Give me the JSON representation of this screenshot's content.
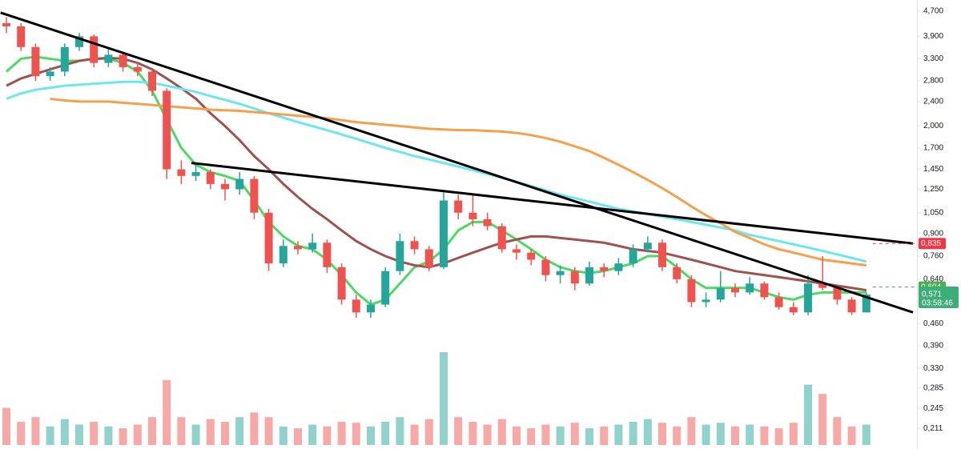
{
  "chart_data": {
    "type": "candlestick",
    "log_scale": true,
    "ylim": [
      0.181,
      5.11
    ],
    "yticks": [
      {
        "value": 4.7,
        "label": "4,700"
      },
      {
        "value": 3.9,
        "label": "3,900"
      },
      {
        "value": 3.3,
        "label": "3,300"
      },
      {
        "value": 2.8,
        "label": "2,800"
      },
      {
        "value": 2.4,
        "label": "2,400"
      },
      {
        "value": 2,
        "label": "2,000"
      },
      {
        "value": 1.7,
        "label": "1,700"
      },
      {
        "value": 1.45,
        "label": "1,450"
      },
      {
        "value": 1.25,
        "label": "1,250"
      },
      {
        "value": 1.05,
        "label": "1,050"
      },
      {
        "value": 0.9,
        "label": "0,900"
      },
      {
        "value": 0.76,
        "label": "0,760"
      },
      {
        "value": 0.64,
        "label": "0,640"
      },
      {
        "value": 0.46,
        "label": "0,460"
      },
      {
        "value": 0.39,
        "label": "0,390"
      },
      {
        "value": 0.33,
        "label": "0,330"
      },
      {
        "value": 0.285,
        "label": "0,285"
      },
      {
        "value": 0.245,
        "label": "0,245"
      },
      {
        "value": 0.211,
        "label": "0,211"
      }
    ],
    "up_color": "#26a69a",
    "down_color": "#ef5350",
    "candles": [
      [
        4.3,
        4.5,
        4.0,
        4.2
      ],
      [
        4.2,
        4.3,
        3.5,
        3.6
      ],
      [
        3.6,
        3.7,
        2.8,
        2.9
      ],
      [
        2.9,
        3.1,
        2.8,
        3.0
      ],
      [
        3.0,
        3.7,
        2.9,
        3.6
      ],
      [
        3.6,
        4.0,
        3.5,
        3.9
      ],
      [
        3.9,
        3.95,
        3.1,
        3.2
      ],
      [
        3.2,
        3.55,
        3.1,
        3.4
      ],
      [
        3.4,
        3.45,
        3.0,
        3.1
      ],
      [
        3.1,
        3.2,
        2.9,
        3.0
      ],
      [
        3.0,
        3.05,
        2.5,
        2.6
      ],
      [
        2.6,
        2.65,
        1.35,
        1.45
      ],
      [
        1.45,
        1.55,
        1.3,
        1.38
      ],
      [
        1.38,
        1.5,
        1.33,
        1.42
      ],
      [
        1.42,
        1.45,
        1.25,
        1.3
      ],
      [
        1.3,
        1.35,
        1.15,
        1.25
      ],
      [
        1.25,
        1.42,
        1.2,
        1.35
      ],
      [
        1.35,
        1.38,
        1.0,
        1.05
      ],
      [
        1.05,
        1.08,
        0.68,
        0.72
      ],
      [
        0.72,
        0.86,
        0.7,
        0.82
      ],
      [
        0.82,
        0.85,
        0.77,
        0.8
      ],
      [
        0.8,
        0.9,
        0.78,
        0.84
      ],
      [
        0.84,
        0.86,
        0.67,
        0.7
      ],
      [
        0.7,
        0.72,
        0.53,
        0.55
      ],
      [
        0.55,
        0.57,
        0.48,
        0.5
      ],
      [
        0.5,
        0.55,
        0.48,
        0.53
      ],
      [
        0.53,
        0.7,
        0.52,
        0.68
      ],
      [
        0.68,
        0.9,
        0.66,
        0.85
      ],
      [
        0.85,
        0.88,
        0.77,
        0.8
      ],
      [
        0.8,
        0.82,
        0.68,
        0.7
      ],
      [
        0.7,
        1.22,
        0.69,
        1.15
      ],
      [
        1.15,
        1.2,
        1.0,
        1.05
      ],
      [
        1.05,
        1.2,
        0.95,
        1.0
      ],
      [
        1.0,
        1.05,
        0.92,
        0.95
      ],
      [
        0.95,
        0.97,
        0.78,
        0.8
      ],
      [
        0.8,
        0.83,
        0.74,
        0.78
      ],
      [
        0.78,
        0.8,
        0.71,
        0.74
      ],
      [
        0.74,
        0.76,
        0.63,
        0.66
      ],
      [
        0.66,
        0.71,
        0.62,
        0.68
      ],
      [
        0.68,
        0.7,
        0.59,
        0.62
      ],
      [
        0.62,
        0.73,
        0.61,
        0.7
      ],
      [
        0.7,
        0.72,
        0.65,
        0.68
      ],
      [
        0.68,
        0.75,
        0.66,
        0.72
      ],
      [
        0.72,
        0.83,
        0.7,
        0.8
      ],
      [
        0.8,
        0.88,
        0.78,
        0.84
      ],
      [
        0.84,
        0.86,
        0.68,
        0.7
      ],
      [
        0.7,
        0.72,
        0.62,
        0.64
      ],
      [
        0.64,
        0.66,
        0.52,
        0.54
      ],
      [
        0.54,
        0.58,
        0.52,
        0.55
      ],
      [
        0.55,
        0.68,
        0.54,
        0.6
      ],
      [
        0.6,
        0.62,
        0.56,
        0.58
      ],
      [
        0.58,
        0.65,
        0.57,
        0.62
      ],
      [
        0.62,
        0.63,
        0.55,
        0.56
      ],
      [
        0.56,
        0.58,
        0.51,
        0.52
      ],
      [
        0.52,
        0.54,
        0.49,
        0.5
      ],
      [
        0.5,
        0.66,
        0.49,
        0.62
      ],
      [
        0.62,
        0.76,
        0.59,
        0.6
      ],
      [
        0.6,
        0.61,
        0.53,
        0.55
      ],
      [
        0.55,
        0.56,
        0.49,
        0.5
      ],
      [
        0.5,
        0.58,
        0.5,
        0.571
      ]
    ],
    "volume": {
      "vlim": [
        0,
        100
      ],
      "values": [
        40,
        25,
        30,
        20,
        28,
        22,
        25,
        20,
        18,
        22,
        30,
        70,
        30,
        22,
        28,
        25,
        30,
        35,
        30,
        20,
        18,
        22,
        20,
        25,
        24,
        20,
        25,
        30,
        22,
        28,
        100,
        30,
        25,
        22,
        28,
        20,
        18,
        22,
        20,
        24,
        18,
        20,
        22,
        25,
        28,
        24,
        20,
        30,
        22,
        24,
        20,
        22,
        20,
        18,
        24,
        65,
        55,
        30,
        20,
        22
      ]
    },
    "series": [
      {
        "color": "#4cd964",
        "values": [
          3.0,
          3.3,
          3.35,
          3.3,
          3.25,
          3.25,
          3.3,
          3.3,
          3.2,
          3.0,
          2.6,
          2.1,
          1.7,
          1.5,
          1.42,
          1.38,
          1.33,
          1.15,
          0.98,
          0.88,
          0.82,
          0.8,
          0.74,
          0.66,
          0.58,
          0.53,
          0.55,
          0.62,
          0.7,
          0.73,
          0.8,
          0.92,
          0.98,
          0.98,
          0.92,
          0.86,
          0.8,
          0.74,
          0.7,
          0.68,
          0.67,
          0.68,
          0.7,
          0.72,
          0.76,
          0.76,
          0.7,
          0.64,
          0.6,
          0.6,
          0.6,
          0.6,
          0.58,
          0.56,
          0.55,
          0.57,
          0.58,
          0.58,
          0.58,
          0.58
        ]
      },
      {
        "color": "#a0524f",
        "values": [
          2.7,
          2.85,
          2.95,
          3.05,
          3.15,
          3.25,
          3.3,
          3.32,
          3.3,
          3.2,
          3.05,
          2.85,
          2.65,
          2.45,
          2.2,
          2.0,
          1.8,
          1.6,
          1.45,
          1.3,
          1.18,
          1.08,
          1.0,
          0.92,
          0.85,
          0.8,
          0.76,
          0.73,
          0.71,
          0.7,
          0.72,
          0.75,
          0.78,
          0.81,
          0.84,
          0.86,
          0.88,
          0.88,
          0.87,
          0.86,
          0.85,
          0.84,
          0.82,
          0.8,
          0.79,
          0.78,
          0.76,
          0.74,
          0.72,
          0.7,
          0.68,
          0.67,
          0.66,
          0.65,
          0.64,
          0.63,
          0.62,
          0.61,
          0.6,
          0.59
        ]
      },
      {
        "color": "#6ee6f0",
        "values": [
          2.45,
          2.55,
          2.62,
          2.66,
          2.7,
          2.72,
          2.74,
          2.76,
          2.78,
          2.78,
          2.76,
          2.7,
          2.64,
          2.58,
          2.5,
          2.43,
          2.36,
          2.28,
          2.2,
          2.13,
          2.06,
          2.0,
          1.94,
          1.88,
          1.82,
          1.76,
          1.7,
          1.65,
          1.6,
          1.56,
          1.52,
          1.48,
          1.44,
          1.4,
          1.36,
          1.32,
          1.28,
          1.24,
          1.2,
          1.17,
          1.14,
          1.11,
          1.08,
          1.06,
          1.04,
          1.02,
          1.0,
          0.98,
          0.96,
          0.94,
          0.92,
          0.89,
          0.87,
          0.85,
          0.83,
          0.81,
          0.79,
          0.77,
          0.75,
          0.73
        ]
      },
      {
        "color": "#f5a04c",
        "values": [
          null,
          null,
          null,
          2.45,
          2.42,
          2.4,
          2.4,
          2.4,
          2.38,
          2.36,
          2.34,
          2.32,
          2.3,
          2.28,
          2.26,
          2.25,
          2.24,
          2.22,
          2.2,
          2.18,
          2.16,
          2.14,
          2.12,
          2.09,
          2.06,
          2.04,
          2.02,
          2.0,
          1.98,
          1.96,
          1.95,
          1.94,
          1.94,
          1.93,
          1.92,
          1.9,
          1.87,
          1.83,
          1.78,
          1.72,
          1.66,
          1.58,
          1.5,
          1.42,
          1.34,
          1.26,
          1.18,
          1.1,
          1.03,
          0.97,
          0.91,
          0.87,
          0.83,
          0.8,
          0.78,
          0.76,
          0.74,
          0.73,
          0.72,
          0.71
        ]
      }
    ],
    "trendlines": [
      {
        "x": [
          -0.4,
          62.2
        ],
        "values": [
          4.65,
          0.5
        ]
      },
      {
        "x": [
          12.7,
          62.2
        ],
        "values": [
          1.52,
          0.835
        ]
      }
    ],
    "price_labels": [
      {
        "value": 0.835,
        "label": "0,835",
        "color": "#f23645"
      },
      {
        "value": 0.604,
        "label": "0,604",
        "color": "#4caf50"
      },
      {
        "value": 0.571,
        "label": "0,571",
        "color": "#3dae78",
        "countdown": "03:58:46"
      }
    ]
  }
}
